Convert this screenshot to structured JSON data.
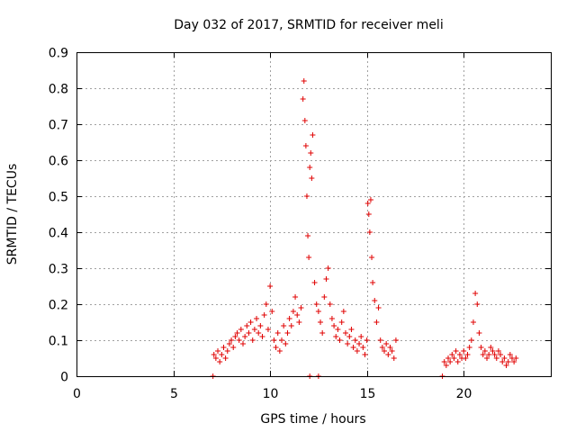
{
  "chart_data": {
    "type": "scatter",
    "title": "Day 032 of 2017, SRMTID for receiver meli",
    "xlabel": "GPS time / hours",
    "ylabel": "SRMTID / TECUs",
    "xlim": [
      0,
      24.5
    ],
    "ylim": [
      0,
      0.9
    ],
    "xticks": [
      0,
      5,
      10,
      15,
      20
    ],
    "xtick_labels": [
      "0",
      "5",
      "10",
      "15",
      "20"
    ],
    "yticks": [
      0,
      0.1,
      0.2,
      0.3,
      0.4,
      0.5,
      0.6,
      0.7,
      0.8,
      0.9
    ],
    "ytick_labels": [
      "0",
      "0.1",
      "0.2",
      "0.3",
      "0.4",
      "0.5",
      "0.6",
      "0.7",
      "0.8",
      "0.9"
    ],
    "grid": true,
    "marker": "plus",
    "series": [
      {
        "name": "SRMTID",
        "color": "#e00000",
        "x": [
          7.1,
          7.2,
          7.3,
          7.4,
          7.5,
          7.6,
          7.7,
          7.8,
          7.9,
          8.0,
          8.1,
          8.2,
          8.3,
          8.4,
          8.5,
          8.6,
          8.7,
          8.8,
          8.9,
          9.0,
          9.1,
          9.2,
          9.3,
          9.4,
          9.5,
          9.6,
          9.7,
          9.8,
          9.9,
          10.0,
          10.1,
          10.2,
          10.3,
          10.4,
          10.5,
          10.6,
          10.7,
          10.8,
          10.9,
          11.0,
          11.1,
          11.2,
          11.3,
          11.4,
          11.5,
          11.6,
          11.7,
          11.75,
          11.8,
          11.85,
          11.9,
          11.95,
          12.0,
          12.05,
          12.1,
          12.15,
          12.2,
          12.3,
          12.4,
          12.5,
          12.6,
          12.7,
          12.8,
          12.9,
          13.0,
          13.1,
          13.2,
          13.3,
          13.4,
          13.5,
          13.6,
          13.7,
          13.8,
          13.9,
          14.0,
          14.1,
          14.2,
          14.3,
          14.4,
          14.5,
          14.6,
          14.7,
          14.8,
          14.9,
          15.0,
          15.05,
          15.1,
          15.15,
          15.2,
          15.25,
          15.3,
          15.4,
          15.5,
          15.6,
          15.7,
          15.8,
          15.9,
          16.0,
          16.1,
          16.2,
          16.3,
          16.4,
          16.5,
          19.0,
          19.1,
          19.2,
          19.3,
          19.4,
          19.5,
          19.6,
          19.7,
          19.8,
          19.9,
          20.0,
          20.1,
          20.2,
          20.3,
          20.4,
          20.5,
          20.6,
          20.7,
          20.8,
          20.9,
          21.0,
          21.1,
          21.2,
          21.3,
          21.4,
          21.5,
          21.6,
          21.7,
          21.8,
          21.9,
          22.0,
          22.1,
          22.2,
          22.3,
          22.4,
          22.5,
          22.6,
          22.7,
          7.05,
          12.05,
          12.5,
          18.9
        ],
        "y": [
          0.06,
          0.05,
          0.07,
          0.04,
          0.06,
          0.08,
          0.05,
          0.07,
          0.09,
          0.1,
          0.08,
          0.11,
          0.12,
          0.1,
          0.13,
          0.09,
          0.11,
          0.14,
          0.12,
          0.15,
          0.1,
          0.13,
          0.16,
          0.12,
          0.14,
          0.11,
          0.17,
          0.2,
          0.13,
          0.25,
          0.18,
          0.1,
          0.08,
          0.12,
          0.07,
          0.1,
          0.14,
          0.09,
          0.12,
          0.16,
          0.14,
          0.18,
          0.22,
          0.17,
          0.15,
          0.19,
          0.77,
          0.82,
          0.71,
          0.64,
          0.5,
          0.39,
          0.33,
          0.58,
          0.62,
          0.55,
          0.67,
          0.26,
          0.2,
          0.18,
          0.15,
          0.12,
          0.22,
          0.27,
          0.3,
          0.2,
          0.16,
          0.14,
          0.11,
          0.13,
          0.1,
          0.15,
          0.18,
          0.12,
          0.09,
          0.11,
          0.13,
          0.08,
          0.1,
          0.07,
          0.09,
          0.11,
          0.08,
          0.06,
          0.1,
          0.48,
          0.45,
          0.4,
          0.49,
          0.33,
          0.26,
          0.21,
          0.15,
          0.19,
          0.1,
          0.08,
          0.07,
          0.09,
          0.06,
          0.08,
          0.07,
          0.05,
          0.1,
          0.04,
          0.03,
          0.05,
          0.04,
          0.06,
          0.05,
          0.07,
          0.04,
          0.06,
          0.05,
          0.07,
          0.05,
          0.06,
          0.08,
          0.1,
          0.15,
          0.23,
          0.2,
          0.12,
          0.08,
          0.06,
          0.07,
          0.05,
          0.06,
          0.08,
          0.07,
          0.06,
          0.05,
          0.07,
          0.06,
          0.04,
          0.05,
          0.03,
          0.04,
          0.06,
          0.05,
          0.04,
          0.05,
          0.0,
          0.0,
          0.0,
          0.0
        ]
      }
    ]
  }
}
